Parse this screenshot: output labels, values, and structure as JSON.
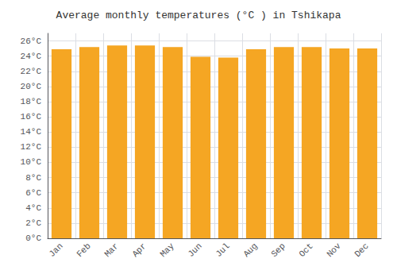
{
  "chart_data": {
    "type": "bar",
    "title": "Average monthly temperatures (°C ) in Tshikapa",
    "categories": [
      "Jan",
      "Feb",
      "Mar",
      "Apr",
      "May",
      "Jun",
      "Jul",
      "Aug",
      "Sep",
      "Oct",
      "Nov",
      "Dec"
    ],
    "values": [
      24.9,
      25.2,
      25.4,
      25.4,
      25.2,
      23.9,
      23.8,
      24.9,
      25.2,
      25.2,
      25.0,
      25.0
    ],
    "color": "#F5A623",
    "ylim": [
      0,
      27
    ],
    "yticks": [
      {
        "value": 0,
        "label": "0°C"
      },
      {
        "value": 2,
        "label": "2°C"
      },
      {
        "value": 4,
        "label": "4°C"
      },
      {
        "value": 6,
        "label": "6°C"
      },
      {
        "value": 8,
        "label": "8°C"
      },
      {
        "value": 10,
        "label": "10°C"
      },
      {
        "value": 12,
        "label": "12°C"
      },
      {
        "value": 14,
        "label": "14°C"
      },
      {
        "value": 16,
        "label": "16°C"
      },
      {
        "value": 18,
        "label": "18°C"
      },
      {
        "value": 20,
        "label": "20°C"
      },
      {
        "value": 22,
        "label": "22°C"
      },
      {
        "value": 24,
        "label": "24°C"
      },
      {
        "value": 26,
        "label": "26°C"
      }
    ],
    "grid": true
  }
}
